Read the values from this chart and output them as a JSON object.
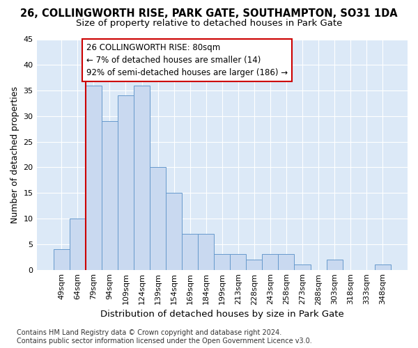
{
  "title1": "26, COLLINGWORTH RISE, PARK GATE, SOUTHAMPTON, SO31 1DA",
  "title2": "Size of property relative to detached houses in Park Gate",
  "xlabel": "Distribution of detached houses by size in Park Gate",
  "ylabel": "Number of detached properties",
  "footnote": "Contains HM Land Registry data © Crown copyright and database right 2024.\nContains public sector information licensed under the Open Government Licence v3.0.",
  "bar_labels": [
    "49sqm",
    "64sqm",
    "79sqm",
    "94sqm",
    "109sqm",
    "124sqm",
    "139sqm",
    "154sqm",
    "169sqm",
    "184sqm",
    "199sqm",
    "213sqm",
    "228sqm",
    "243sqm",
    "258sqm",
    "273sqm",
    "288sqm",
    "303sqm",
    "318sqm",
    "333sqm",
    "348sqm"
  ],
  "bar_values": [
    4,
    10,
    36,
    29,
    34,
    36,
    20,
    15,
    7,
    7,
    3,
    3,
    2,
    3,
    3,
    1,
    0,
    2,
    0,
    0,
    1
  ],
  "bar_color": "#c9d9f0",
  "bar_edge_color": "#6699cc",
  "vline_color": "#cc0000",
  "vline_pos": 2.5,
  "ylim": [
    0,
    45
  ],
  "yticks": [
    0,
    5,
    10,
    15,
    20,
    25,
    30,
    35,
    40,
    45
  ],
  "annotation_line1": "26 COLLINGWORTH RISE: 80sqm",
  "annotation_line2": "← 7% of detached houses are smaller (14)",
  "annotation_line3": "92% of semi-detached houses are larger (186) →",
  "annotation_box_facecolor": "#ffffff",
  "annotation_box_edgecolor": "#cc0000",
  "fig_bg_color": "#ffffff",
  "plot_bg_color": "#dce9f7",
  "grid_color": "#ffffff",
  "title1_fontsize": 10.5,
  "title2_fontsize": 9.5,
  "xlabel_fontsize": 9.5,
  "ylabel_fontsize": 9,
  "annotation_fontsize": 8.5,
  "tick_fontsize": 8,
  "footnote_fontsize": 7
}
